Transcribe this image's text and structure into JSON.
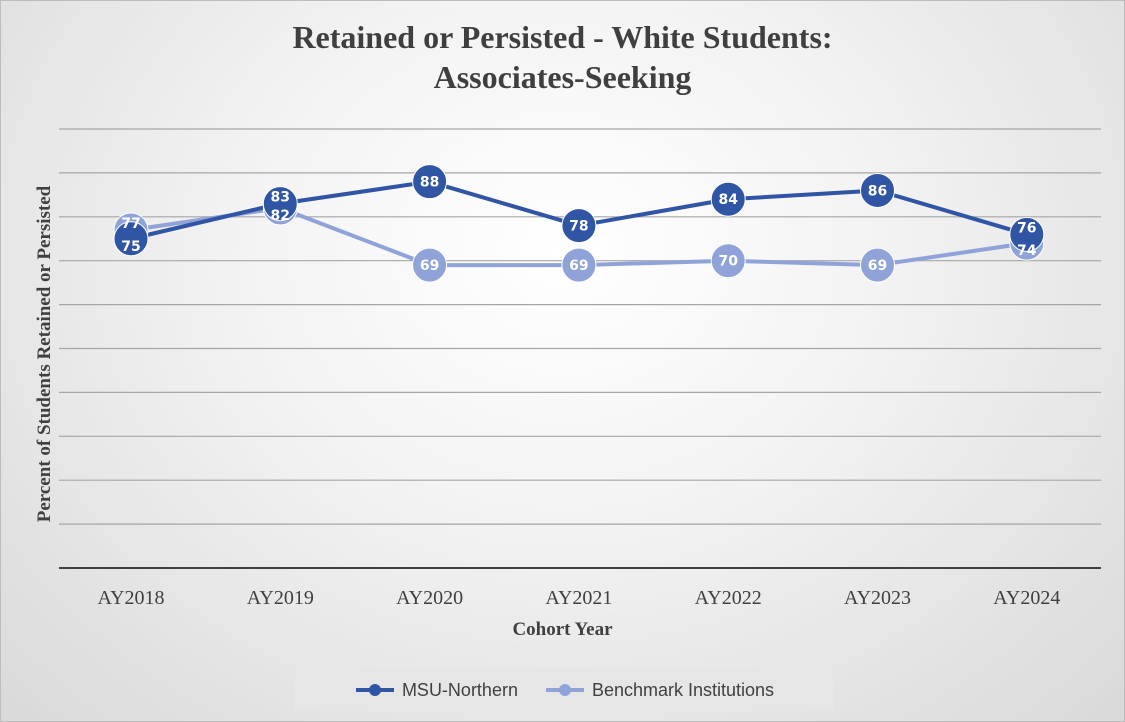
{
  "chart_data": {
    "type": "line",
    "title": [
      "Retained or Persisted - White Students:",
      "Associates-Seeking"
    ],
    "xlabel": "Cohort Year",
    "ylabel": "Percent of  Students Retained or Persisted",
    "categories": [
      "AY2018",
      "AY2019",
      "AY2020",
      "AY2021",
      "AY2022",
      "AY2023",
      "AY2024"
    ],
    "ylim": [
      0,
      100
    ],
    "y_tick_interval": 10,
    "y_tick_labels_shown": false,
    "grid": true,
    "legend_position": "bottom",
    "data_labels": true,
    "series": [
      {
        "name": "MSU-Northern",
        "values": [
          75,
          83,
          88,
          78,
          84,
          86,
          76
        ],
        "color": "#2f55a4"
      },
      {
        "name": "Benchmark Institutions",
        "values": [
          77,
          82,
          69,
          69,
          70,
          69,
          74
        ],
        "color": "#8fa3d8"
      }
    ]
  }
}
